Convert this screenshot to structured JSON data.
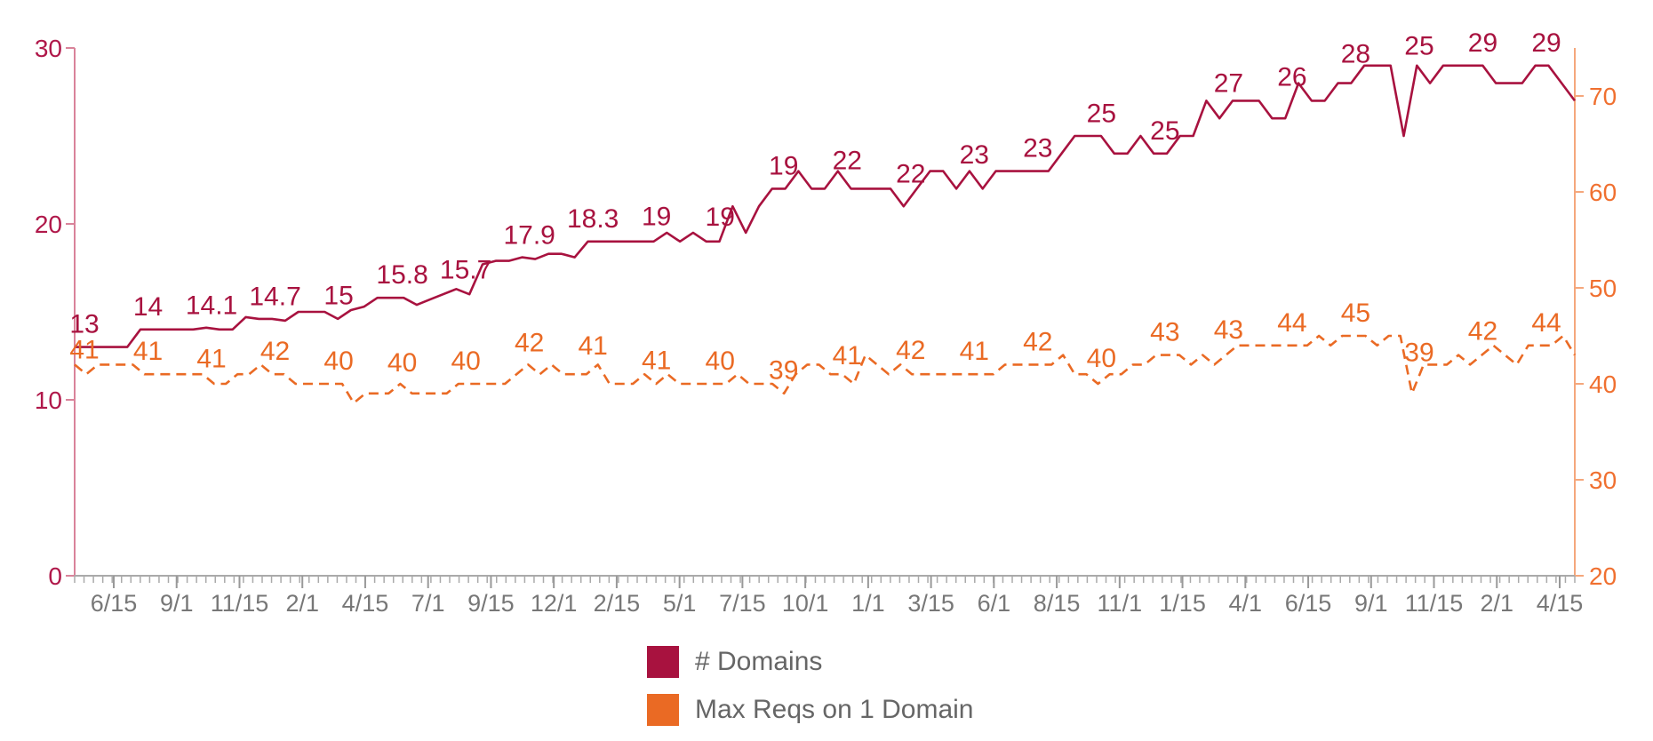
{
  "chart_data": {
    "type": "line",
    "x_tick_labels": [
      "6/15",
      "9/1",
      "11/15",
      "2/1",
      "4/15",
      "7/1",
      "9/15",
      "12/1",
      "2/15",
      "5/1",
      "7/15",
      "10/1",
      "1/1",
      "3/15",
      "6/1",
      "8/15",
      "11/1",
      "1/15",
      "4/1",
      "6/15",
      "9/1",
      "11/15",
      "2/1",
      "4/15"
    ],
    "y_left": {
      "ticks": [
        0,
        10,
        20,
        30
      ],
      "range": [
        0,
        30
      ]
    },
    "y_right": {
      "ticks": [
        20,
        30,
        40,
        50,
        60,
        70
      ],
      "range": [
        20,
        75
      ]
    },
    "series": [
      {
        "name": "# Domains",
        "axis": "left",
        "color": "#a8123f",
        "dashed": false,
        "values": [
          13,
          13,
          13,
          13,
          13,
          14,
          14,
          14,
          14,
          14,
          14.1,
          14,
          14,
          14.7,
          14.6,
          14.6,
          14.5,
          15,
          15,
          15,
          14.6,
          15.1,
          15.3,
          15.8,
          15.8,
          15.8,
          15.4,
          15.7,
          16,
          16.3,
          16,
          17.7,
          17.9,
          17.9,
          18.1,
          18,
          18.3,
          18.3,
          18.1,
          19,
          19,
          19,
          19,
          19,
          19,
          19.5,
          19,
          19.5,
          19,
          19,
          21,
          19.5,
          21,
          22,
          22,
          23,
          22,
          22,
          23,
          22,
          22,
          22,
          22,
          21,
          22,
          23,
          23,
          22,
          23,
          22,
          23,
          23,
          23,
          23,
          23,
          24,
          25,
          25,
          25,
          24,
          24,
          25,
          24,
          24,
          25,
          25,
          27,
          26,
          27,
          27,
          27,
          26,
          26,
          28,
          27,
          27,
          28,
          28,
          29,
          29,
          29,
          25,
          29,
          28,
          29,
          29,
          29,
          29,
          28,
          28,
          28,
          29,
          29,
          28,
          27
        ],
        "labels": [
          "13",
          "14",
          "14.1",
          "14.7",
          "15",
          "15.8",
          "15.7",
          "17.9",
          "18.3",
          "19",
          "19",
          "19",
          "22",
          "22",
          "23",
          "23",
          "25",
          "25",
          "27",
          "26",
          "28",
          "25",
          "29",
          "29"
        ]
      },
      {
        "name": "Max Reqs on 1 Domain",
        "axis": "right",
        "color": "#ea6a24",
        "dashed": true,
        "values": [
          42,
          41,
          42,
          42,
          42,
          42,
          41,
          41,
          41,
          41,
          41,
          41,
          40,
          40,
          41,
          41,
          42,
          41,
          41,
          40,
          40,
          40,
          40,
          40,
          38,
          39,
          39,
          39,
          40,
          39,
          39,
          39,
          39,
          40,
          40,
          40,
          40,
          40,
          41,
          42,
          41,
          42,
          41,
          41,
          41,
          42,
          40,
          40,
          40,
          41,
          40,
          41,
          40,
          40,
          40,
          40,
          40,
          41,
          40,
          40,
          40,
          39,
          41,
          42,
          42,
          41,
          41,
          40,
          43,
          42,
          41,
          42,
          41,
          41,
          41,
          41,
          41,
          41,
          41,
          41,
          42,
          42,
          42,
          42,
          42,
          43,
          41,
          41,
          40,
          41,
          41,
          42,
          42,
          43,
          43,
          43,
          42,
          43,
          42,
          43,
          44,
          44,
          44,
          44,
          44,
          44,
          44,
          45,
          44,
          45,
          45,
          45,
          44,
          45,
          45,
          39,
          42,
          42,
          42,
          43,
          42,
          43,
          44,
          43,
          42,
          44,
          44,
          44,
          45,
          43
        ],
        "labels": [
          "41",
          "41",
          "41",
          "42",
          "40",
          "40",
          "40",
          "42",
          "41",
          "41",
          "40",
          "39",
          "41",
          "42",
          "41",
          "42",
          "40",
          "43",
          "43",
          "44",
          "45",
          "39",
          "42",
          "44"
        ]
      }
    ]
  },
  "legend": {
    "items": [
      {
        "label": "# Domains",
        "color": "#a8123f"
      },
      {
        "label": "Max Reqs on 1 Domain",
        "color": "#ea6a24"
      }
    ]
  }
}
